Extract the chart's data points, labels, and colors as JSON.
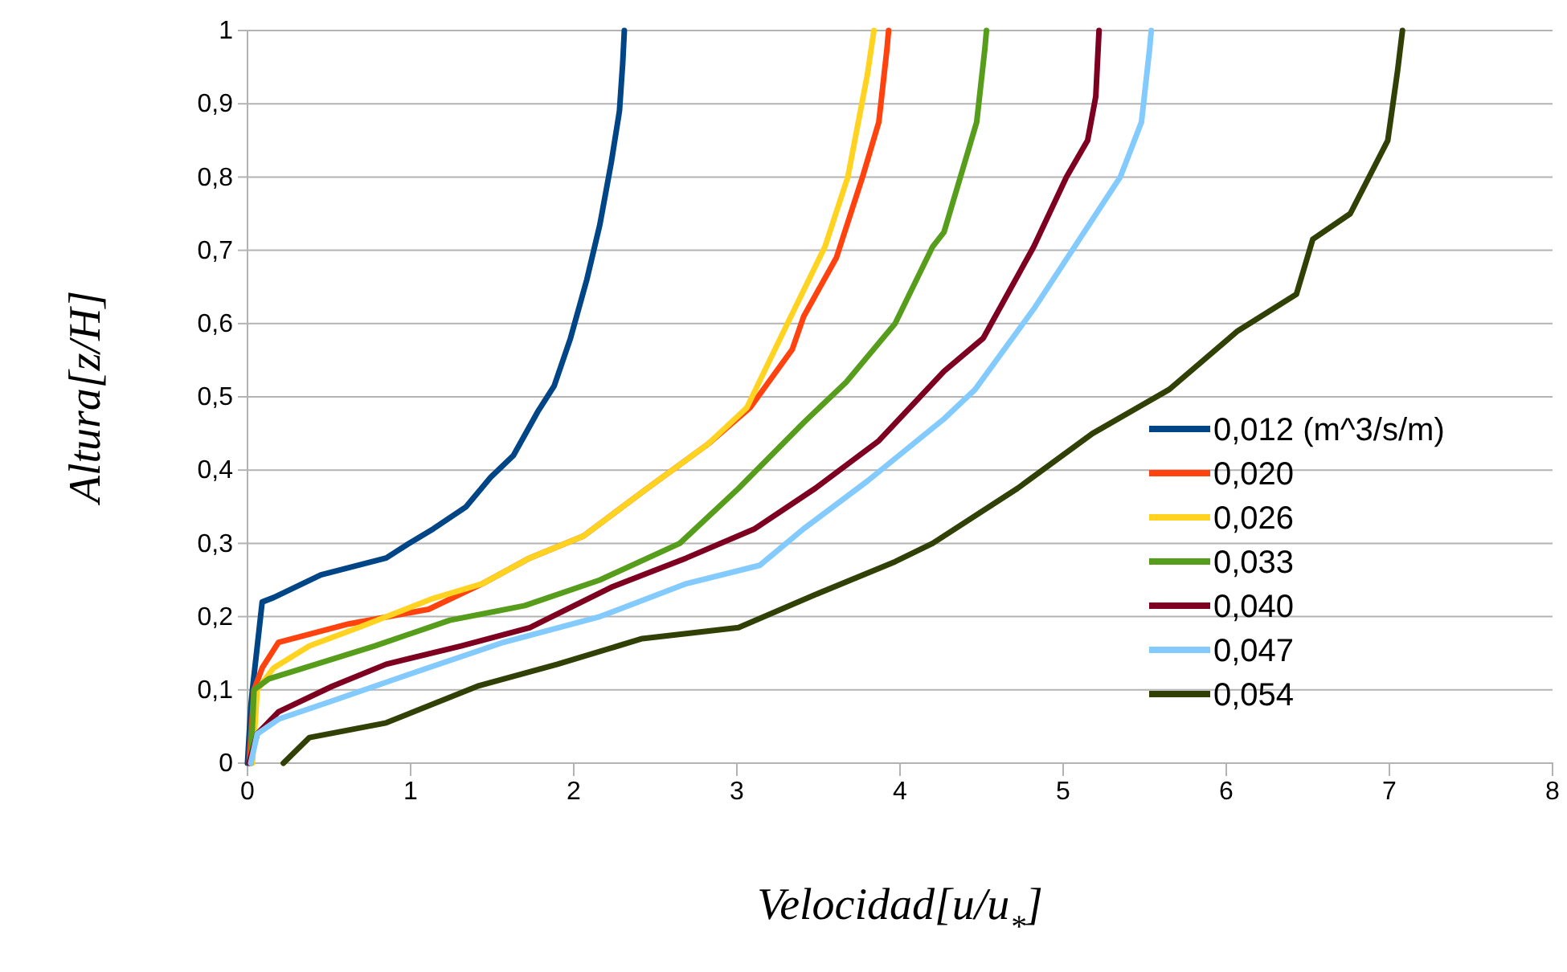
{
  "chart_data": {
    "type": "line",
    "xlabel": "Velocidad[u/u$_{*}$]",
    "ylabel": "Altura[z/H]",
    "xlim": [
      0,
      8
    ],
    "xticks": [
      0,
      1,
      2,
      3,
      4,
      5,
      6,
      7,
      8
    ],
    "ylim": [
      0,
      1
    ],
    "yticks": [
      0,
      {
        "value": 0.1,
        "label": "0,1"
      },
      {
        "value": 0.2,
        "label": "0,2"
      },
      {
        "value": 0.3,
        "label": "0,3"
      },
      {
        "value": 0.4,
        "label": "0,4"
      },
      {
        "value": 0.5,
        "label": "0,5"
      },
      {
        "value": 0.6,
        "label": "0,6"
      },
      {
        "value": 0.7,
        "label": "0,7"
      },
      {
        "value": 0.8,
        "label": "0,8"
      },
      {
        "value": 0.9,
        "label": "0,9"
      },
      1
    ],
    "grid": "y",
    "legend": "right",
    "marker": "none",
    "line_style": "solid",
    "series": [
      {
        "name": "0,012 (m^3/s/m)",
        "color": "#004586",
        "x": [
          0,
          0.02,
          0.03,
          0.09,
          0.16,
          0.45,
          0.85,
          0.99,
          1.14,
          1.34,
          1.49,
          1.63,
          1.78,
          1.88,
          1.98,
          2.08,
          2.16,
          2.23,
          2.28,
          2.3,
          2.31
        ],
        "values": [
          0,
          0.077,
          0.1,
          0.22,
          0.226,
          0.257,
          0.28,
          0.3,
          0.32,
          0.35,
          0.39,
          0.42,
          0.48,
          0.515,
          0.58,
          0.66,
          0.735,
          0.82,
          0.89,
          0.955,
          1
        ]
      },
      {
        "name": "0,020",
        "color": "#ff420e",
        "x": [
          0.01,
          0.04,
          0.09,
          0.19,
          0.62,
          1.11,
          1.44,
          1.73,
          2.06,
          2.45,
          2.82,
          3.08,
          3.34,
          3.41,
          3.61,
          3.77,
          3.87,
          3.92,
          3.93
        ],
        "values": [
          0,
          0.1,
          0.13,
          0.165,
          0.19,
          0.21,
          0.245,
          0.28,
          0.31,
          0.375,
          0.435,
          0.485,
          0.565,
          0.61,
          0.69,
          0.8,
          0.875,
          0.975,
          1
        ]
      },
      {
        "name": "0,026",
        "color": "#ffd320",
        "x": [
          0.03,
          0.06,
          0.16,
          0.38,
          0.68,
          1.14,
          1.44,
          1.73,
          2.06,
          2.45,
          2.82,
          3.06,
          3.31,
          3.54,
          3.68,
          3.8,
          3.84
        ],
        "values": [
          0,
          0.1,
          0.13,
          0.16,
          0.185,
          0.225,
          0.245,
          0.28,
          0.31,
          0.375,
          0.435,
          0.485,
          0.6,
          0.705,
          0.8,
          0.94,
          1
        ]
      },
      {
        "name": "0,033",
        "color": "#579d1c",
        "x": [
          0.02,
          0.04,
          0.13,
          0.42,
          0.78,
          1.24,
          1.7,
          2.16,
          2.65,
          3.01,
          3.41,
          3.67,
          3.97,
          4.2,
          4.27,
          4.37,
          4.47,
          4.52,
          4.53
        ],
        "values": [
          0,
          0.1,
          0.115,
          0.135,
          0.16,
          0.195,
          0.215,
          0.25,
          0.3,
          0.375,
          0.465,
          0.52,
          0.6,
          0.705,
          0.725,
          0.8,
          0.875,
          0.975,
          1
        ]
      },
      {
        "name": "0,040",
        "color": "#7e0021",
        "x": [
          0.01,
          0.06,
          0.19,
          0.52,
          0.85,
          1.31,
          1.73,
          2.23,
          2.69,
          3.11,
          3.48,
          3.87,
          4.27,
          4.51,
          4.82,
          5.02,
          5.15,
          5.2,
          5.22
        ],
        "values": [
          0,
          0.04,
          0.07,
          0.105,
          0.135,
          0.16,
          0.185,
          0.24,
          0.28,
          0.32,
          0.375,
          0.44,
          0.535,
          0.58,
          0.705,
          0.8,
          0.85,
          0.91,
          1
        ]
      },
      {
        "name": "0,047",
        "color": "#83caff",
        "x": [
          0.02,
          0.06,
          0.19,
          0.52,
          1.04,
          1.57,
          2.16,
          2.69,
          3.14,
          3.41,
          3.8,
          4.27,
          4.46,
          4.82,
          5.1,
          5.35,
          5.48,
          5.53,
          5.54
        ],
        "values": [
          0,
          0.04,
          0.06,
          0.085,
          0.125,
          0.165,
          0.2,
          0.245,
          0.27,
          0.32,
          0.385,
          0.47,
          0.51,
          0.62,
          0.715,
          0.8,
          0.875,
          0.975,
          1
        ]
      },
      {
        "name": "0,054",
        "color": "#314004",
        "x": [
          0.22,
          0.38,
          0.85,
          1.41,
          1.9,
          2.42,
          3.01,
          3.48,
          3.97,
          4.2,
          4.72,
          5.18,
          5.65,
          6.07,
          6.43,
          6.53,
          6.76,
          6.99,
          7.05,
          7.08
        ],
        "values": [
          0,
          0.035,
          0.055,
          0.105,
          0.135,
          0.17,
          0.185,
          0.23,
          0.275,
          0.3,
          0.375,
          0.45,
          0.51,
          0.59,
          0.64,
          0.715,
          0.75,
          0.85,
          0.945,
          1
        ]
      }
    ]
  }
}
